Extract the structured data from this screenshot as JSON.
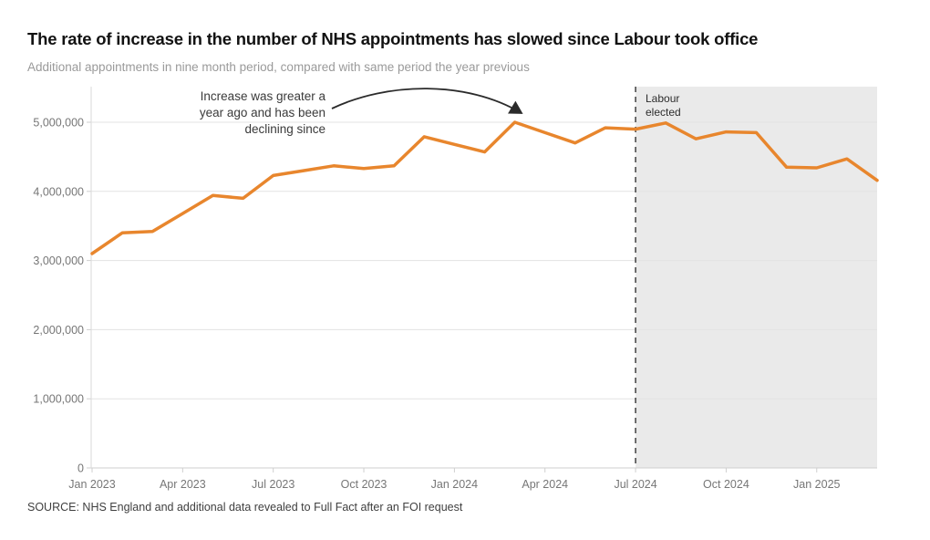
{
  "colors": {
    "line": "#E8862D",
    "shade": "#EAEAEA",
    "grid": "#E3E3E3",
    "axis": "#CFCFCF",
    "axis_line": "#DADADA",
    "dashed_line": "#333333",
    "arrow": "#2B2B2B",
    "tick_text": "#767676",
    "title_text": "#121212",
    "subtitle_text": "#9A9A9A",
    "annotation_text": "#3A3A3A",
    "source_text": "#3F3F3F"
  },
  "chart_data": {
    "type": "line",
    "title": "The rate of increase in the number of NHS appointments has slowed since Labour took office",
    "subtitle": "Additional appointments in nine month period, compared with same period the year previous",
    "source": "SOURCE: NHS England and additional data revealed to Full Fact after an FOI request",
    "xlabel": "",
    "ylabel": "",
    "grid": "horizontal",
    "legend": false,
    "ylim": [
      0,
      5510000
    ],
    "x": [
      "Jan 2023",
      "Feb 2023",
      "Mar 2023",
      "Apr 2023",
      "May 2023",
      "Jun 2023",
      "Jul 2023",
      "Aug 2023",
      "Sep 2023",
      "Oct 2023",
      "Nov 2023",
      "Dec 2023",
      "Jan 2024",
      "Feb 2024",
      "Mar 2024",
      "Apr 2024",
      "May 2024",
      "Jun 2024",
      "Jul 2024",
      "Aug 2024",
      "Sep 2024",
      "Oct 2024",
      "Nov 2024",
      "Dec 2024",
      "Jan 2025",
      "Feb 2025",
      "Mar 2025"
    ],
    "values": [
      3100000,
      3400000,
      3420000,
      3680000,
      3940000,
      3900000,
      4230000,
      4300000,
      4370000,
      4330000,
      4370000,
      4790000,
      4680000,
      4570000,
      5000000,
      4850000,
      4700000,
      4920000,
      4900000,
      4990000,
      4760000,
      4860000,
      4850000,
      4350000,
      4340000,
      4470000,
      4160000
    ],
    "x_tick_labels": [
      "Jan 2023",
      "Apr 2023",
      "Jul 2023",
      "Oct 2023",
      "Jan 2024",
      "Apr 2024",
      "Jul 2024",
      "Oct 2024",
      "Jan 2025"
    ],
    "y_ticks": [
      0,
      1000000,
      2000000,
      3000000,
      4000000,
      5000000
    ],
    "y_tick_labels": [
      "0",
      "1,000,000",
      "2,000,000",
      "3,000,000",
      "4,000,000",
      "5,000,000"
    ],
    "annotation": {
      "text": "Increase was greater a year ago and has been declining since",
      "lines": [
        "Increase was greater a",
        "year ago and has been",
        "declining since"
      ],
      "arrow_points_to": "Mar 2024"
    },
    "election_marker": {
      "x": "Jul 2024",
      "label_lines": [
        "Labour",
        "elected"
      ],
      "style": "dashed",
      "shaded_after": true
    }
  }
}
